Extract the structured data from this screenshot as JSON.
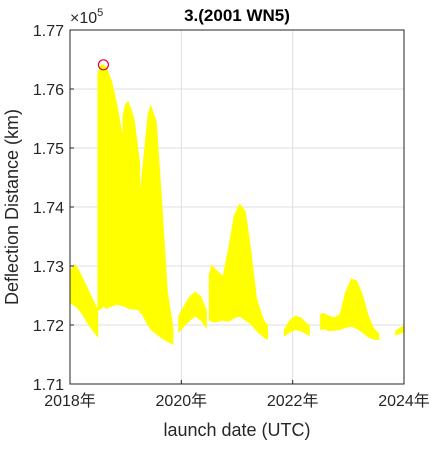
{
  "chart_data": {
    "type": "area",
    "title": "3.(2001 WN5)",
    "xlabel": "launch date (UTC)",
    "ylabel": "Deflection Distance (km)",
    "y_exponent_label": "×10",
    "y_exponent_power": "5",
    "xlim": [
      2018,
      2024
    ],
    "ylim": [
      1.71,
      1.77
    ],
    "x_ticks": [
      {
        "value": 2018,
        "label": "2018年"
      },
      {
        "value": 2020,
        "label": "2020年"
      },
      {
        "value": 2022,
        "label": "2022年"
      },
      {
        "value": 2024,
        "label": "2024年"
      }
    ],
    "y_ticks": [
      {
        "value": 1.71,
        "label": "1.71"
      },
      {
        "value": 1.72,
        "label": "1.72"
      },
      {
        "value": 1.73,
        "label": "1.73"
      },
      {
        "value": 1.74,
        "label": "1.74"
      },
      {
        "value": 1.75,
        "label": "1.75"
      },
      {
        "value": 1.76,
        "label": "1.76"
      },
      {
        "value": 1.77,
        "label": "1.77"
      }
    ],
    "grid": true,
    "fill_color": "#ffff00",
    "marker_color": "#e8003a",
    "max_point": {
      "x": 2018.6,
      "y": 1.7641
    },
    "series": [
      {
        "x": [
          2018.0,
          2018.1,
          2018.2,
          2018.35,
          2018.5
        ],
        "upper": [
          1.7293,
          1.7302,
          1.7285,
          1.7255,
          1.7225
        ],
        "lower": [
          1.7238,
          1.7232,
          1.7222,
          1.7198,
          1.718
        ]
      },
      {
        "x": [
          2018.5,
          2018.55,
          2018.6,
          2018.65,
          2018.75,
          2018.85,
          2018.95
        ],
        "upper": [
          1.7625,
          1.764,
          1.7641,
          1.7637,
          1.7612,
          1.757,
          1.7515
        ],
        "lower": [
          1.7225,
          1.7227,
          1.7232,
          1.7228,
          1.7232,
          1.7235,
          1.7232
        ]
      },
      {
        "x": [
          2018.95,
          2019.0,
          2019.05,
          2019.15,
          2019.25
        ],
        "upper": [
          1.7555,
          1.7575,
          1.7578,
          1.755,
          1.7475
        ],
        "lower": [
          1.7232,
          1.7231,
          1.7228,
          1.7227,
          1.7225
        ]
      },
      {
        "x": [
          2019.25,
          2019.3,
          2019.4,
          2019.45,
          2019.55,
          2019.65,
          2019.75,
          2019.85
        ],
        "upper": [
          1.742,
          1.746,
          1.7555,
          1.7572,
          1.7545,
          1.7405,
          1.7255,
          1.7195
        ],
        "lower": [
          1.7222,
          1.7218,
          1.72,
          1.7193,
          1.7185,
          1.7178,
          1.7172,
          1.7168
        ]
      },
      {
        "x": [
          2019.95,
          2020.05,
          2020.15,
          2020.25,
          2020.35,
          2020.45
        ],
        "upper": [
          1.7215,
          1.7232,
          1.7248,
          1.7256,
          1.7248,
          1.7225
        ],
        "lower": [
          1.7188,
          1.7198,
          1.7208,
          1.7215,
          1.7208,
          1.7195
        ]
      },
      {
        "x": [
          2020.5,
          2020.55,
          2020.6,
          2020.75,
          2020.85,
          2020.95,
          2021.05,
          2021.15,
          2021.25,
          2021.35,
          2021.45,
          2021.5,
          2021.55
        ],
        "upper": [
          1.7285,
          1.7302,
          1.7295,
          1.7282,
          1.733,
          1.7385,
          1.7405,
          1.7392,
          1.7325,
          1.7245,
          1.7215,
          1.7205,
          1.72
        ],
        "lower": [
          1.7208,
          1.7206,
          1.7205,
          1.7208,
          1.7206,
          1.7212,
          1.7215,
          1.7208,
          1.7202,
          1.719,
          1.7182,
          1.7178,
          1.7176
        ]
      },
      {
        "x": [
          2021.85,
          2021.95,
          2022.05,
          2022.15,
          2022.3
        ],
        "upper": [
          1.7192,
          1.7208,
          1.7215,
          1.7212,
          1.7198
        ],
        "lower": [
          1.7182,
          1.7188,
          1.7192,
          1.719,
          1.7182
        ]
      },
      {
        "x": [
          2022.5,
          2022.55,
          2022.65,
          2022.75,
          2022.85,
          2022.95,
          2023.05,
          2023.15,
          2023.25,
          2023.35,
          2023.45,
          2023.55
        ],
        "upper": [
          1.7218,
          1.722,
          1.7215,
          1.7212,
          1.7218,
          1.7255,
          1.7278,
          1.7275,
          1.7252,
          1.7218,
          1.7195,
          1.7185
        ],
        "lower": [
          1.7192,
          1.7194,
          1.719,
          1.7191,
          1.7192,
          1.7196,
          1.7198,
          1.7194,
          1.7188,
          1.718,
          1.7176,
          1.7175
        ]
      },
      {
        "x": [
          2023.85,
          2023.95,
          2024.0
        ],
        "upper": [
          1.719,
          1.7196,
          1.7198
        ],
        "lower": [
          1.7183,
          1.7186,
          1.7188
        ]
      }
    ]
  }
}
